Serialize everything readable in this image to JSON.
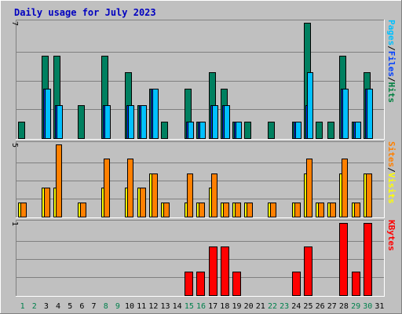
{
  "chart_data": {
    "type": "bar",
    "title": "Daily usage for July 2023",
    "categories": [
      "1",
      "2",
      "3",
      "4",
      "5",
      "6",
      "7",
      "8",
      "9",
      "10",
      "11",
      "12",
      "13",
      "14",
      "15",
      "16",
      "17",
      "18",
      "19",
      "20",
      "21",
      "22",
      "23",
      "24",
      "25",
      "26",
      "27",
      "28",
      "29",
      "30",
      "31"
    ],
    "weekend_days": [
      "1",
      "2",
      "8",
      "9",
      "15",
      "16",
      "22",
      "23",
      "29",
      "30"
    ],
    "panels": [
      {
        "key": "hits",
        "ymax": 7,
        "max_label": "7",
        "side_label_parts": [
          {
            "text": "Pages",
            "color": "#00c0ff"
          },
          {
            "text": "/",
            "color": "#000000"
          },
          {
            "text": "Files",
            "color": "#0040ff"
          },
          {
            "text": "/",
            "color": "#000000"
          },
          {
            "text": "Hits",
            "color": "#008040"
          }
        ],
        "series": [
          {
            "name": "Hits",
            "color": "#008060",
            "values": [
              1,
              0,
              5,
              5,
              0,
              2,
              0,
              5,
              0,
              4,
              2,
              3,
              1,
              0,
              3,
              1,
              4,
              3,
              1,
              1,
              0,
              1,
              0,
              1,
              7,
              1,
              1,
              5,
              1,
              4,
              0
            ]
          },
          {
            "name": "Files",
            "color": "#0040ff",
            "values": [
              0,
              0,
              3,
              2,
              0,
              0,
              0,
              2,
              0,
              2,
              2,
              3,
              0,
              0,
              1,
              1,
              2,
              2,
              1,
              0,
              0,
              0,
              0,
              1,
              2,
              0,
              0,
              3,
              1,
              3,
              0
            ]
          },
          {
            "name": "Pages",
            "color": "#00c0ff",
            "values": [
              0,
              0,
              3,
              2,
              0,
              0,
              0,
              2,
              0,
              2,
              2,
              3,
              0,
              0,
              1,
              1,
              2,
              2,
              1,
              0,
              0,
              0,
              0,
              1,
              4,
              0,
              0,
              3,
              1,
              3,
              0
            ]
          }
        ]
      },
      {
        "key": "visits",
        "ymax": 5,
        "max_label": "5",
        "side_label_parts": [
          {
            "text": "Sites",
            "color": "#ff8000"
          },
          {
            "text": "/",
            "color": "#000000"
          },
          {
            "text": "Visits",
            "color": "#ffff00"
          }
        ],
        "series": [
          {
            "name": "Visits",
            "color": "#ffff00",
            "values": [
              1,
              0,
              2,
              2,
              0,
              1,
              0,
              2,
              0,
              2,
              2,
              3,
              1,
              0,
              1,
              1,
              2,
              1,
              1,
              1,
              0,
              1,
              0,
              1,
              3,
              1,
              1,
              3,
              1,
              3,
              0
            ]
          },
          {
            "name": "Sites",
            "color": "#ff8000",
            "values": [
              1,
              0,
              2,
              5,
              0,
              1,
              0,
              4,
              0,
              4,
              2,
              3,
              1,
              0,
              3,
              1,
              3,
              1,
              1,
              1,
              0,
              1,
              0,
              1,
              4,
              1,
              1,
              4,
              1,
              3,
              0
            ]
          }
        ]
      },
      {
        "key": "kbytes",
        "ymax": 1,
        "max_label": "1",
        "side_label_parts": [
          {
            "text": "KBytes",
            "color": "#ff0000"
          }
        ],
        "series": [
          {
            "name": "KBytes",
            "color": "#ff0000",
            "values": [
              0,
              0,
              0,
              0,
              0,
              0,
              0,
              0,
              0,
              0,
              0,
              0,
              0,
              0,
              0.33,
              0.33,
              0.67,
              0.67,
              0.33,
              0,
              0,
              0,
              0,
              0.33,
              0.67,
              0,
              0,
              1,
              0.33,
              1,
              0
            ]
          }
        ]
      }
    ],
    "grid": true,
    "legend": "right-side vertical labels"
  },
  "colors": {
    "background": "#c0c0c0",
    "plot_background": "#c0c0c0",
    "title": "#0000ff",
    "weekday_label": "#000000",
    "weekend_label": "#00804c"
  }
}
